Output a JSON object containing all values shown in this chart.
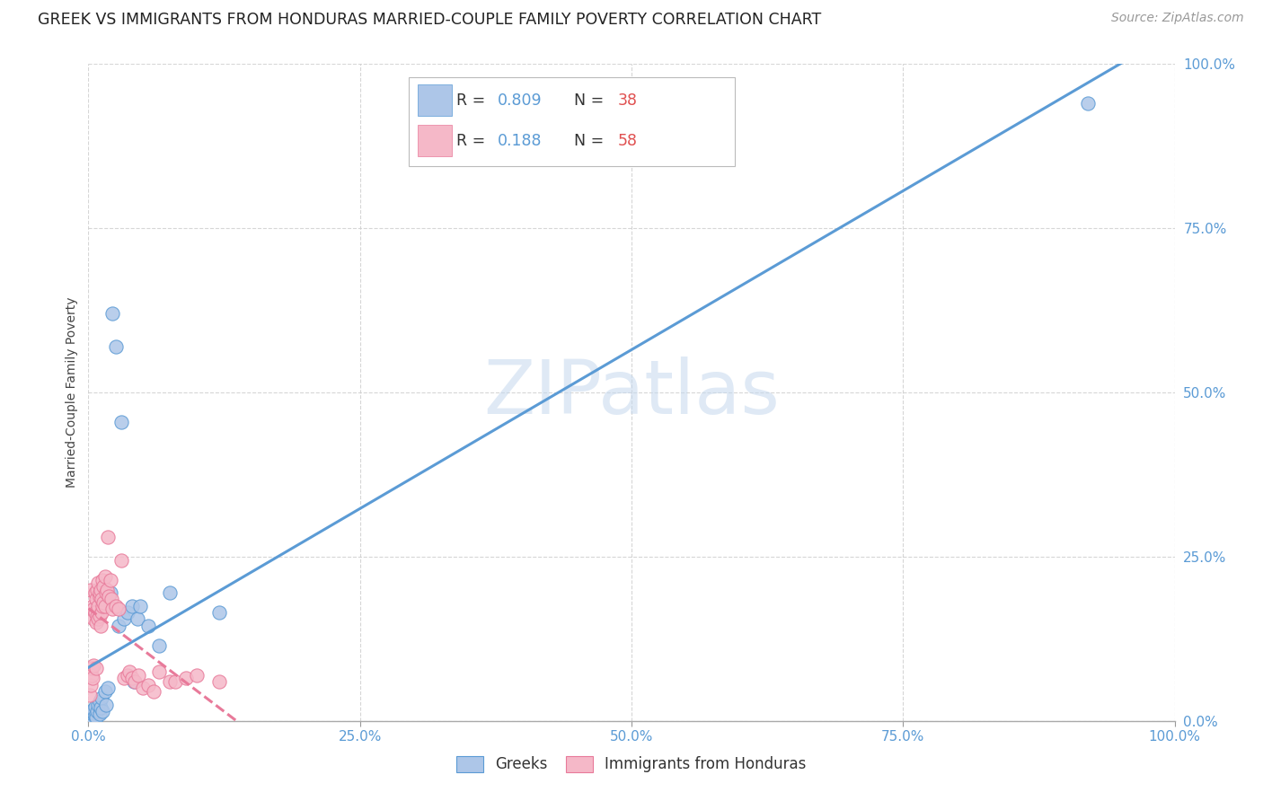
{
  "title": "GREEK VS IMMIGRANTS FROM HONDURAS MARRIED-COUPLE FAMILY POVERTY CORRELATION CHART",
  "source": "Source: ZipAtlas.com",
  "ylabel": "Married-Couple Family Poverty",
  "background_color": "#ffffff",
  "grid_color": "#cccccc",
  "watermark": "ZIPatlas",
  "tick_color": "#5b9bd5",
  "title_fontsize": 12.5,
  "axis_label_fontsize": 10,
  "tick_fontsize": 11,
  "source_fontsize": 10,
  "source_color": "#999999",
  "legend_R_color": "#5b9bd5",
  "legend_N_color": "#e05050",
  "series": [
    {
      "name": "Greeks",
      "R": 0.809,
      "N": 38,
      "color": "#adc6e8",
      "edge_color": "#5b9bd5",
      "line_color": "#5b9bd5",
      "line_style": "solid",
      "x": [
        0.001,
        0.002,
        0.002,
        0.003,
        0.003,
        0.004,
        0.004,
        0.005,
        0.005,
        0.006,
        0.006,
        0.007,
        0.008,
        0.009,
        0.01,
        0.01,
        0.011,
        0.012,
        0.013,
        0.015,
        0.016,
        0.018,
        0.02,
        0.022,
        0.025,
        0.028,
        0.03,
        0.033,
        0.036,
        0.04,
        0.042,
        0.045,
        0.048,
        0.055,
        0.065,
        0.075,
        0.12,
        0.92
      ],
      "y": [
        0.0,
        0.002,
        0.005,
        0.008,
        0.003,
        0.01,
        0.015,
        0.012,
        0.018,
        0.008,
        0.022,
        0.005,
        0.015,
        0.025,
        0.01,
        0.03,
        0.02,
        0.035,
        0.015,
        0.045,
        0.025,
        0.05,
        0.195,
        0.62,
        0.57,
        0.145,
        0.455,
        0.155,
        0.165,
        0.175,
        0.06,
        0.155,
        0.175,
        0.145,
        0.115,
        0.195,
        0.165,
        0.94
      ]
    },
    {
      "name": "Immigrants from Honduras",
      "R": 0.188,
      "N": 58,
      "color": "#f5b8c8",
      "edge_color": "#e87a9a",
      "line_color": "#e87a9a",
      "line_style": "dashed",
      "x": [
        0.001,
        0.002,
        0.002,
        0.003,
        0.003,
        0.004,
        0.004,
        0.005,
        0.005,
        0.005,
        0.006,
        0.006,
        0.007,
        0.007,
        0.007,
        0.008,
        0.008,
        0.009,
        0.009,
        0.009,
        0.01,
        0.01,
        0.01,
        0.011,
        0.011,
        0.012,
        0.012,
        0.013,
        0.013,
        0.014,
        0.014,
        0.015,
        0.015,
        0.016,
        0.017,
        0.018,
        0.019,
        0.02,
        0.021,
        0.022,
        0.025,
        0.028,
        0.03,
        0.033,
        0.036,
        0.038,
        0.04,
        0.043,
        0.046,
        0.05,
        0.055,
        0.06,
        0.065,
        0.075,
        0.08,
        0.09,
        0.1,
        0.12
      ],
      "y": [
        0.04,
        0.055,
        0.2,
        0.07,
        0.08,
        0.065,
        0.175,
        0.085,
        0.155,
        0.17,
        0.165,
        0.195,
        0.08,
        0.15,
        0.185,
        0.16,
        0.2,
        0.155,
        0.175,
        0.21,
        0.16,
        0.19,
        0.195,
        0.145,
        0.2,
        0.165,
        0.185,
        0.215,
        0.175,
        0.205,
        0.18,
        0.175,
        0.22,
        0.195,
        0.2,
        0.28,
        0.19,
        0.215,
        0.185,
        0.17,
        0.175,
        0.17,
        0.245,
        0.065,
        0.07,
        0.075,
        0.065,
        0.06,
        0.07,
        0.05,
        0.055,
        0.045,
        0.075,
        0.06,
        0.06,
        0.065,
        0.07,
        0.06
      ]
    }
  ]
}
